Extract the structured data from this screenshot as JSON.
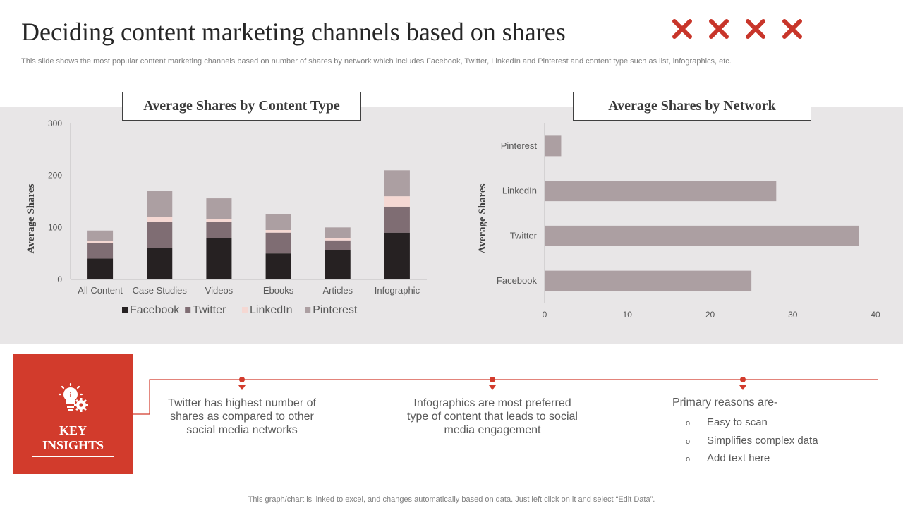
{
  "slide": {
    "title": "Deciding content marketing channels based on shares",
    "subtitle": "This slide shows the most popular content marketing channels based on number of shares by network which includes Facebook, Twitter, LinkedIn and Pinterest and content type  such as list, infographics, etc.",
    "decor_icon": "x-mark-icon",
    "decor_color": "#c8352a",
    "footnote": "This graph/chart is linked to excel,  and changes automatically based on data. Just left click on it and select “Edit Data”."
  },
  "chart_data": [
    {
      "type": "bar",
      "orientation": "vertical",
      "stacked": true,
      "title": "Average Shares by Content Type",
      "xlabel": "",
      "ylabel": "Average Shares",
      "ylim": [
        0,
        300
      ],
      "yticks": [
        0,
        100,
        200,
        300
      ],
      "grid": false,
      "legend_position": "bottom",
      "categories": [
        "All Content",
        "Case Studies",
        "Videos",
        "Ebooks",
        "Articles",
        "Infographic"
      ],
      "series": [
        {
          "name": "Facebook",
          "color": "#262122",
          "values": [
            40,
            60,
            80,
            50,
            56,
            90
          ]
        },
        {
          "name": "Twitter",
          "color": "#7f6d73",
          "values": [
            30,
            50,
            30,
            40,
            19,
            50
          ]
        },
        {
          "name": "LinkedIn",
          "color": "#f5d8d3",
          "values": [
            4,
            10,
            6,
            5,
            4,
            20
          ]
        },
        {
          "name": "Pinterest",
          "color": "#ac9fa2",
          "values": [
            20,
            50,
            40,
            30,
            21,
            50
          ]
        }
      ]
    },
    {
      "type": "bar",
      "orientation": "horizontal",
      "title": "Average Shares by Network",
      "xlabel": "",
      "ylabel": "Average Shares",
      "xlim": [
        0,
        40
      ],
      "xticks": [
        0,
        10,
        20,
        30,
        40
      ],
      "grid": false,
      "categories": [
        "Facebook",
        "Twitter",
        "LinkedIn",
        "Pinterest"
      ],
      "series": [
        {
          "color": "#ac9fa2",
          "values": [
            25,
            38,
            28,
            2
          ]
        }
      ]
    }
  ],
  "insights": {
    "heading": "KEY INSIGHTS",
    "heading_line1": "KEY",
    "heading_line2": "INSIGHTS",
    "icon": "lightbulb-gear-icon",
    "accent_color": "#d23b2c",
    "items": [
      "Twitter has highest number of shares as compared to other social media networks",
      "Infographics are most preferred type of content that leads to social media engagement"
    ],
    "reasons_title": "Primary reasons are-",
    "reason_bullet": "o",
    "reasons": [
      "Easy to scan",
      "Simplifies complex data",
      "Add text here"
    ]
  }
}
